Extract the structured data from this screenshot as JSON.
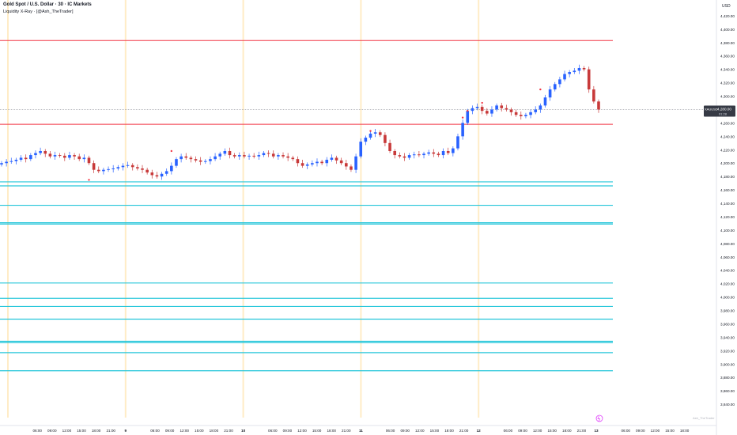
{
  "header": {
    "title": "Gold Spot / U.S. Dollar · 30 · IC Markets",
    "indicator": "Liquidity X-Ray · [@Ash_TheTrader]",
    "currency": "USD"
  },
  "price_label": {
    "symbol": "XAUUSD",
    "value": "4,280.00",
    "countdown": "01:28"
  },
  "watermark": "Ash_TheTrader",
  "colors": {
    "bull": "#2962ff",
    "bear": "#c83a3a",
    "resistance": "#f23645",
    "liquidity": "#26c6da",
    "session": "#ffe0a0",
    "marker": "#f23645"
  },
  "chart_data": {
    "type": "candlestick",
    "y_axis": {
      "min": 3820,
      "max": 4440,
      "ticks": [
        4420,
        4400,
        4380,
        4360,
        4340,
        4320,
        4300,
        4280,
        4260,
        4240,
        4220,
        4200,
        4180,
        4160,
        4140,
        4120,
        4100,
        4080,
        4060,
        4040,
        4020,
        4000,
        3980,
        3960,
        3940,
        3920,
        3900,
        3880,
        3860,
        3840
      ],
      "tick_labels": [
        "4,420.00",
        "4,400.00",
        "4,380.00",
        "4,360.00",
        "4,340.00",
        "4,320.00",
        "4,300.00",
        "4,280.00",
        "4,260.00",
        "4,240.00",
        "4,220.00",
        "4,200.00",
        "4,180.00",
        "4,160.00",
        "4,140.00",
        "4,120.00",
        "4,100.00",
        "4,080.00",
        "4,060.00",
        "4,040.00",
        "4,020.00",
        "4,000.00",
        "3,980.00",
        "3,960.00",
        "3,940.00",
        "3,920.00",
        "3,900.00",
        "3,880.00",
        "3,860.00",
        "3,840.00"
      ]
    },
    "x_axis": {
      "labels": [
        "06:00",
        "09:00",
        "12:00",
        "15:00",
        "18:00",
        "21:00",
        "9",
        "06:00",
        "09:00",
        "12:00",
        "15:00",
        "18:00",
        "21:00",
        "10",
        "06:00",
        "09:00",
        "12:00",
        "15:00",
        "18:00",
        "21:00",
        "11",
        "06:00",
        "09:00",
        "12:00",
        "15:00",
        "18:00",
        "21:00",
        "12",
        "06:00",
        "09:00",
        "12:00",
        "15:00",
        "18:00",
        "21:00",
        "13",
        "06:00",
        "09:00",
        "12:00",
        "15:00",
        "18:00"
      ],
      "hours": [
        6,
        9,
        12,
        15,
        18,
        21,
        24,
        30,
        33,
        36,
        39,
        42,
        45,
        48,
        54,
        57,
        60,
        63,
        66,
        69,
        72,
        78,
        81,
        84,
        87,
        90,
        93,
        96,
        102,
        105,
        108,
        111,
        114,
        117,
        120,
        126,
        129,
        132,
        135,
        138
      ]
    },
    "close_series": [
      4200,
      4202,
      4203,
      4205,
      4208,
      4206,
      4212,
      4215,
      4218,
      4214,
      4210,
      4212,
      4211,
      4208,
      4212,
      4210,
      4206,
      4208,
      4200,
      4190,
      4188,
      4190,
      4191,
      4192,
      4194,
      4196,
      4197,
      4194,
      4192,
      4190,
      4186,
      4182,
      4180,
      4184,
      4188,
      4196,
      4206,
      4210,
      4208,
      4206,
      4204,
      4202,
      4203,
      4206,
      4210,
      4214,
      4218,
      4212,
      4210,
      4212,
      4210,
      4211,
      4210,
      4212,
      4215,
      4214,
      4210,
      4212,
      4210,
      4208,
      4206,
      4200,
      4196,
      4198,
      4200,
      4202,
      4200,
      4205,
      4208,
      4204,
      4200,
      4195,
      4190,
      4210,
      4232,
      4238,
      4244,
      4246,
      4242,
      4230,
      4218,
      4212,
      4210,
      4208,
      4212,
      4213,
      4212,
      4214,
      4216,
      4214,
      4212,
      4218,
      4215,
      4222,
      4240,
      4260,
      4278,
      4282,
      4284,
      4278,
      4274,
      4280,
      4286,
      4282,
      4280,
      4276,
      4272,
      4270,
      4272,
      4276,
      4280,
      4286,
      4298,
      4310,
      4318,
      4325,
      4333,
      4336,
      4338,
      4342,
      4340,
      4310,
      4292,
      4280
    ],
    "resistance_levels": [
      4383,
      4258
    ],
    "liquidity_levels": [
      4172,
      4166,
      4137,
      4111,
      4109,
      4021,
      3998,
      3986,
      3967,
      3934,
      3932,
      3917,
      3890
    ],
    "session_hours": [
      0,
      24,
      48,
      72,
      96
    ],
    "last_price": 4280
  }
}
